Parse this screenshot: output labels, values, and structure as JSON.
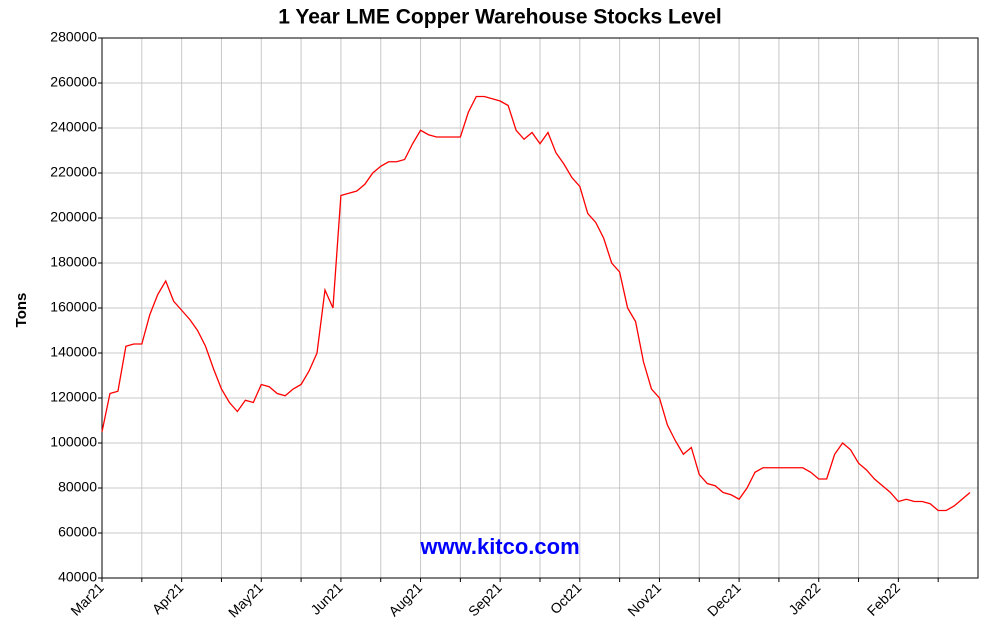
{
  "chart_data": {
    "type": "line",
    "title": "1 Year LME Copper Warehouse Stocks Level",
    "y_label": "Tons",
    "watermark": "www.kitco.com",
    "color": "#ff0000",
    "grid": true,
    "categories": [
      "Mar21",
      null,
      null,
      null,
      null,
      null,
      null,
      null,
      null,
      null,
      "Apr21",
      null,
      null,
      null,
      null,
      null,
      null,
      null,
      null,
      null,
      "May21",
      null,
      null,
      null,
      null,
      null,
      null,
      null,
      null,
      null,
      "Jun21",
      null,
      null,
      null,
      null,
      null,
      null,
      null,
      null,
      null,
      "Aug21",
      null,
      null,
      null,
      null,
      null,
      null,
      null,
      null,
      null,
      "Sep21",
      null,
      null,
      null,
      null,
      null,
      null,
      null,
      null,
      null,
      "Oct21",
      null,
      null,
      null,
      null,
      null,
      null,
      null,
      null,
      null,
      "Nov21",
      null,
      null,
      null,
      null,
      null,
      null,
      null,
      null,
      null,
      "Dec21",
      null,
      null,
      null,
      null,
      null,
      null,
      null,
      null,
      null,
      "Jan22",
      null,
      null,
      null,
      null,
      null,
      null,
      null,
      null,
      null,
      "Feb22",
      null,
      null,
      null,
      null,
      null,
      null,
      null,
      null,
      null
    ],
    "values": [
      105000,
      122000,
      123000,
      143000,
      144000,
      144000,
      157000,
      166000,
      172000,
      163000,
      159000,
      155000,
      150000,
      143000,
      133000,
      124000,
      118000,
      114000,
      119000,
      118000,
      126000,
      125000,
      122000,
      121000,
      124000,
      126000,
      132000,
      140000,
      168000,
      160000,
      210000,
      211000,
      212000,
      215000,
      220000,
      223000,
      225000,
      225000,
      226000,
      233000,
      239000,
      237000,
      236000,
      236000,
      236000,
      236000,
      247000,
      254000,
      254000,
      253000,
      252000,
      250000,
      239000,
      235000,
      238000,
      233000,
      238000,
      229000,
      224000,
      218000,
      214000,
      202000,
      198000,
      191000,
      180000,
      176000,
      160000,
      154000,
      136000,
      124000,
      120000,
      108000,
      101000,
      95000,
      98000,
      86000,
      82000,
      81000,
      78000,
      77000,
      75000,
      80000,
      87000,
      89000,
      89000,
      89000,
      89000,
      89000,
      89000,
      87000,
      84000,
      84000,
      95000,
      100000,
      97000,
      91000,
      88000,
      84000,
      81000,
      78000,
      74000,
      75000,
      74000,
      74000,
      73000,
      70000,
      70000,
      72000,
      75000,
      78000
    ],
    "ylim": [
      40000,
      280000
    ],
    "yticks": [
      40000,
      60000,
      80000,
      100000,
      120000,
      140000,
      160000,
      180000,
      200000,
      220000,
      240000,
      260000,
      280000
    ]
  }
}
